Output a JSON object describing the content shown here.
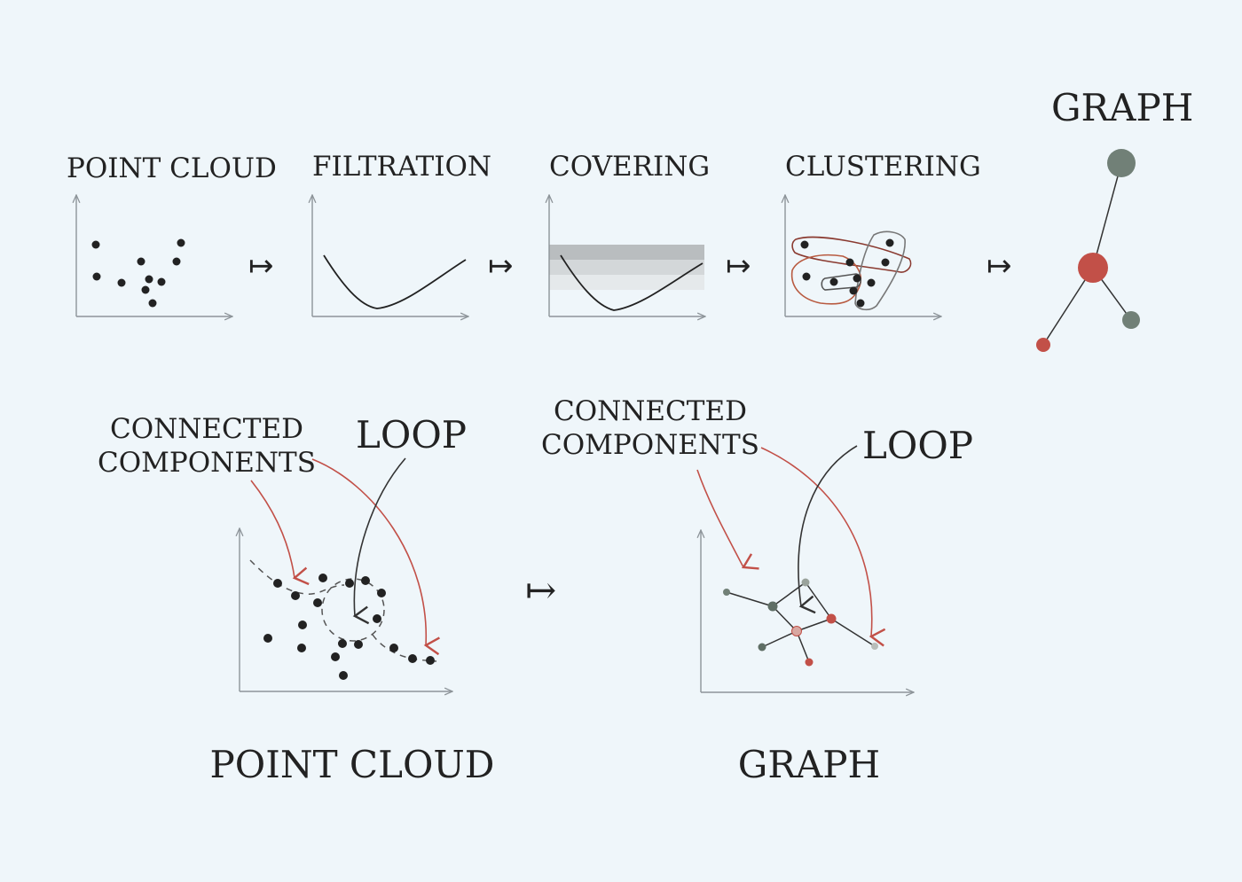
{
  "colors": {
    "background": "#eff6fa",
    "red": "#c25048",
    "gray_green": "#718077",
    "dark": "#222222"
  },
  "pipeline": {
    "step1": "POINT CLOUD",
    "step2": "FILTRATION",
    "step3": "COVERING",
    "step4": "CLUSTERING",
    "step5": "GRAPH",
    "maps_to": "↦"
  },
  "bottom": {
    "left": {
      "components_line1": "CONNECTED",
      "components_line2": "COMPONENTS",
      "loop": "LOOP",
      "caption": "POINT CLOUD"
    },
    "maps_to": "↦",
    "right": {
      "components_line1": "CONNECTED",
      "components_line2": "COMPONENTS",
      "loop": "LOOP",
      "caption": "GRAPH"
    }
  }
}
